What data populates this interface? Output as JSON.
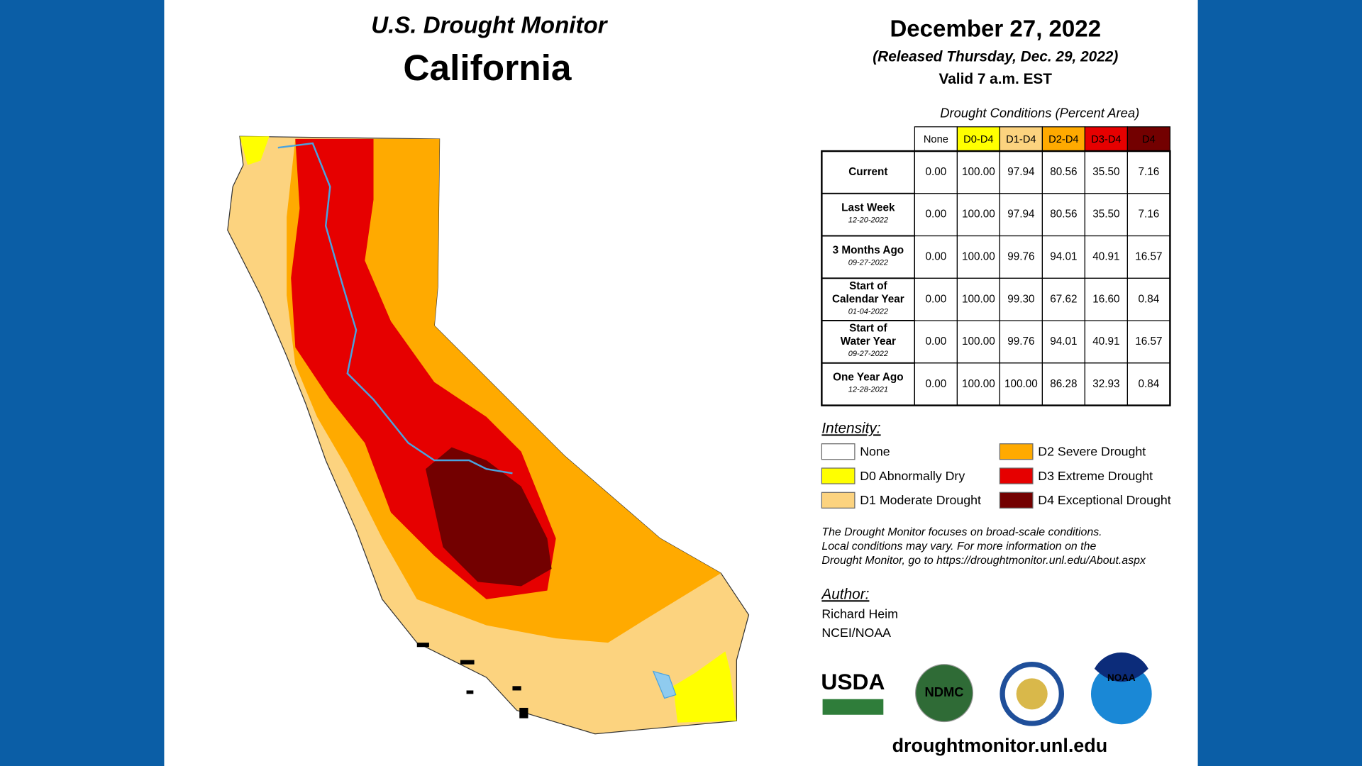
{
  "header": {
    "title": "U.S. Drought Monitor",
    "region": "California",
    "date": "December 27, 2022",
    "released": "(Released Thursday, Dec. 29, 2022)",
    "valid": "Valid 7 a.m. EST"
  },
  "table": {
    "caption": "Drought Conditions (Percent Area)",
    "columns": [
      "None",
      "D0-D4",
      "D1-D4",
      "D2-D4",
      "D3-D4",
      "D4"
    ],
    "rows": [
      {
        "label": [
          "Current"
        ],
        "date": null,
        "cells": [
          "0.00",
          "100.00",
          "97.94",
          "80.56",
          "35.50",
          "7.16"
        ]
      },
      {
        "label": [
          "Last Week"
        ],
        "date": "12-20-2022",
        "cells": [
          "0.00",
          "100.00",
          "97.94",
          "80.56",
          "35.50",
          "7.16"
        ]
      },
      {
        "label": [
          "3 Months Ago"
        ],
        "date": "09-27-2022",
        "cells": [
          "0.00",
          "100.00",
          "99.76",
          "94.01",
          "40.91",
          "16.57"
        ]
      },
      {
        "label": [
          "Start of",
          "Calendar Year"
        ],
        "date": "01-04-2022",
        "cells": [
          "0.00",
          "100.00",
          "99.30",
          "67.62",
          "16.60",
          "0.84"
        ]
      },
      {
        "label": [
          "Start of",
          "Water Year"
        ],
        "date": "09-27-2022",
        "cells": [
          "0.00",
          "100.00",
          "99.76",
          "94.01",
          "40.91",
          "16.57"
        ]
      },
      {
        "label": [
          "One Year Ago"
        ],
        "date": "12-28-2021",
        "cells": [
          "0.00",
          "100.00",
          "100.00",
          "86.28",
          "32.93",
          "0.84"
        ]
      }
    ]
  },
  "legend": {
    "title": "Intensity:",
    "items": [
      {
        "label": "None",
        "color": "#ffffff"
      },
      {
        "label": "D0 Abnormally Dry",
        "color": "#ffff00"
      },
      {
        "label": "D1 Moderate Drought",
        "color": "#fcd37f"
      },
      {
        "label": "D2 Severe Drought",
        "color": "#ffaa00"
      },
      {
        "label": "D3 Extreme Drought",
        "color": "#e60000"
      },
      {
        "label": "D4 Exceptional Drought",
        "color": "#730000"
      }
    ]
  },
  "note": [
    "The Drought Monitor focuses on broad-scale conditions.",
    "Local conditions may vary. For more information on the",
    "Drought Monitor, go to https://droughtmonitor.unl.edu/About.aspx"
  ],
  "author": {
    "title": "Author:",
    "lines": [
      "Richard Heim",
      "NCEI/NOAA"
    ]
  },
  "logos": [
    "USDA",
    "NDMC",
    "NOAA"
  ],
  "url": "droughtmonitor.unl.edu"
}
